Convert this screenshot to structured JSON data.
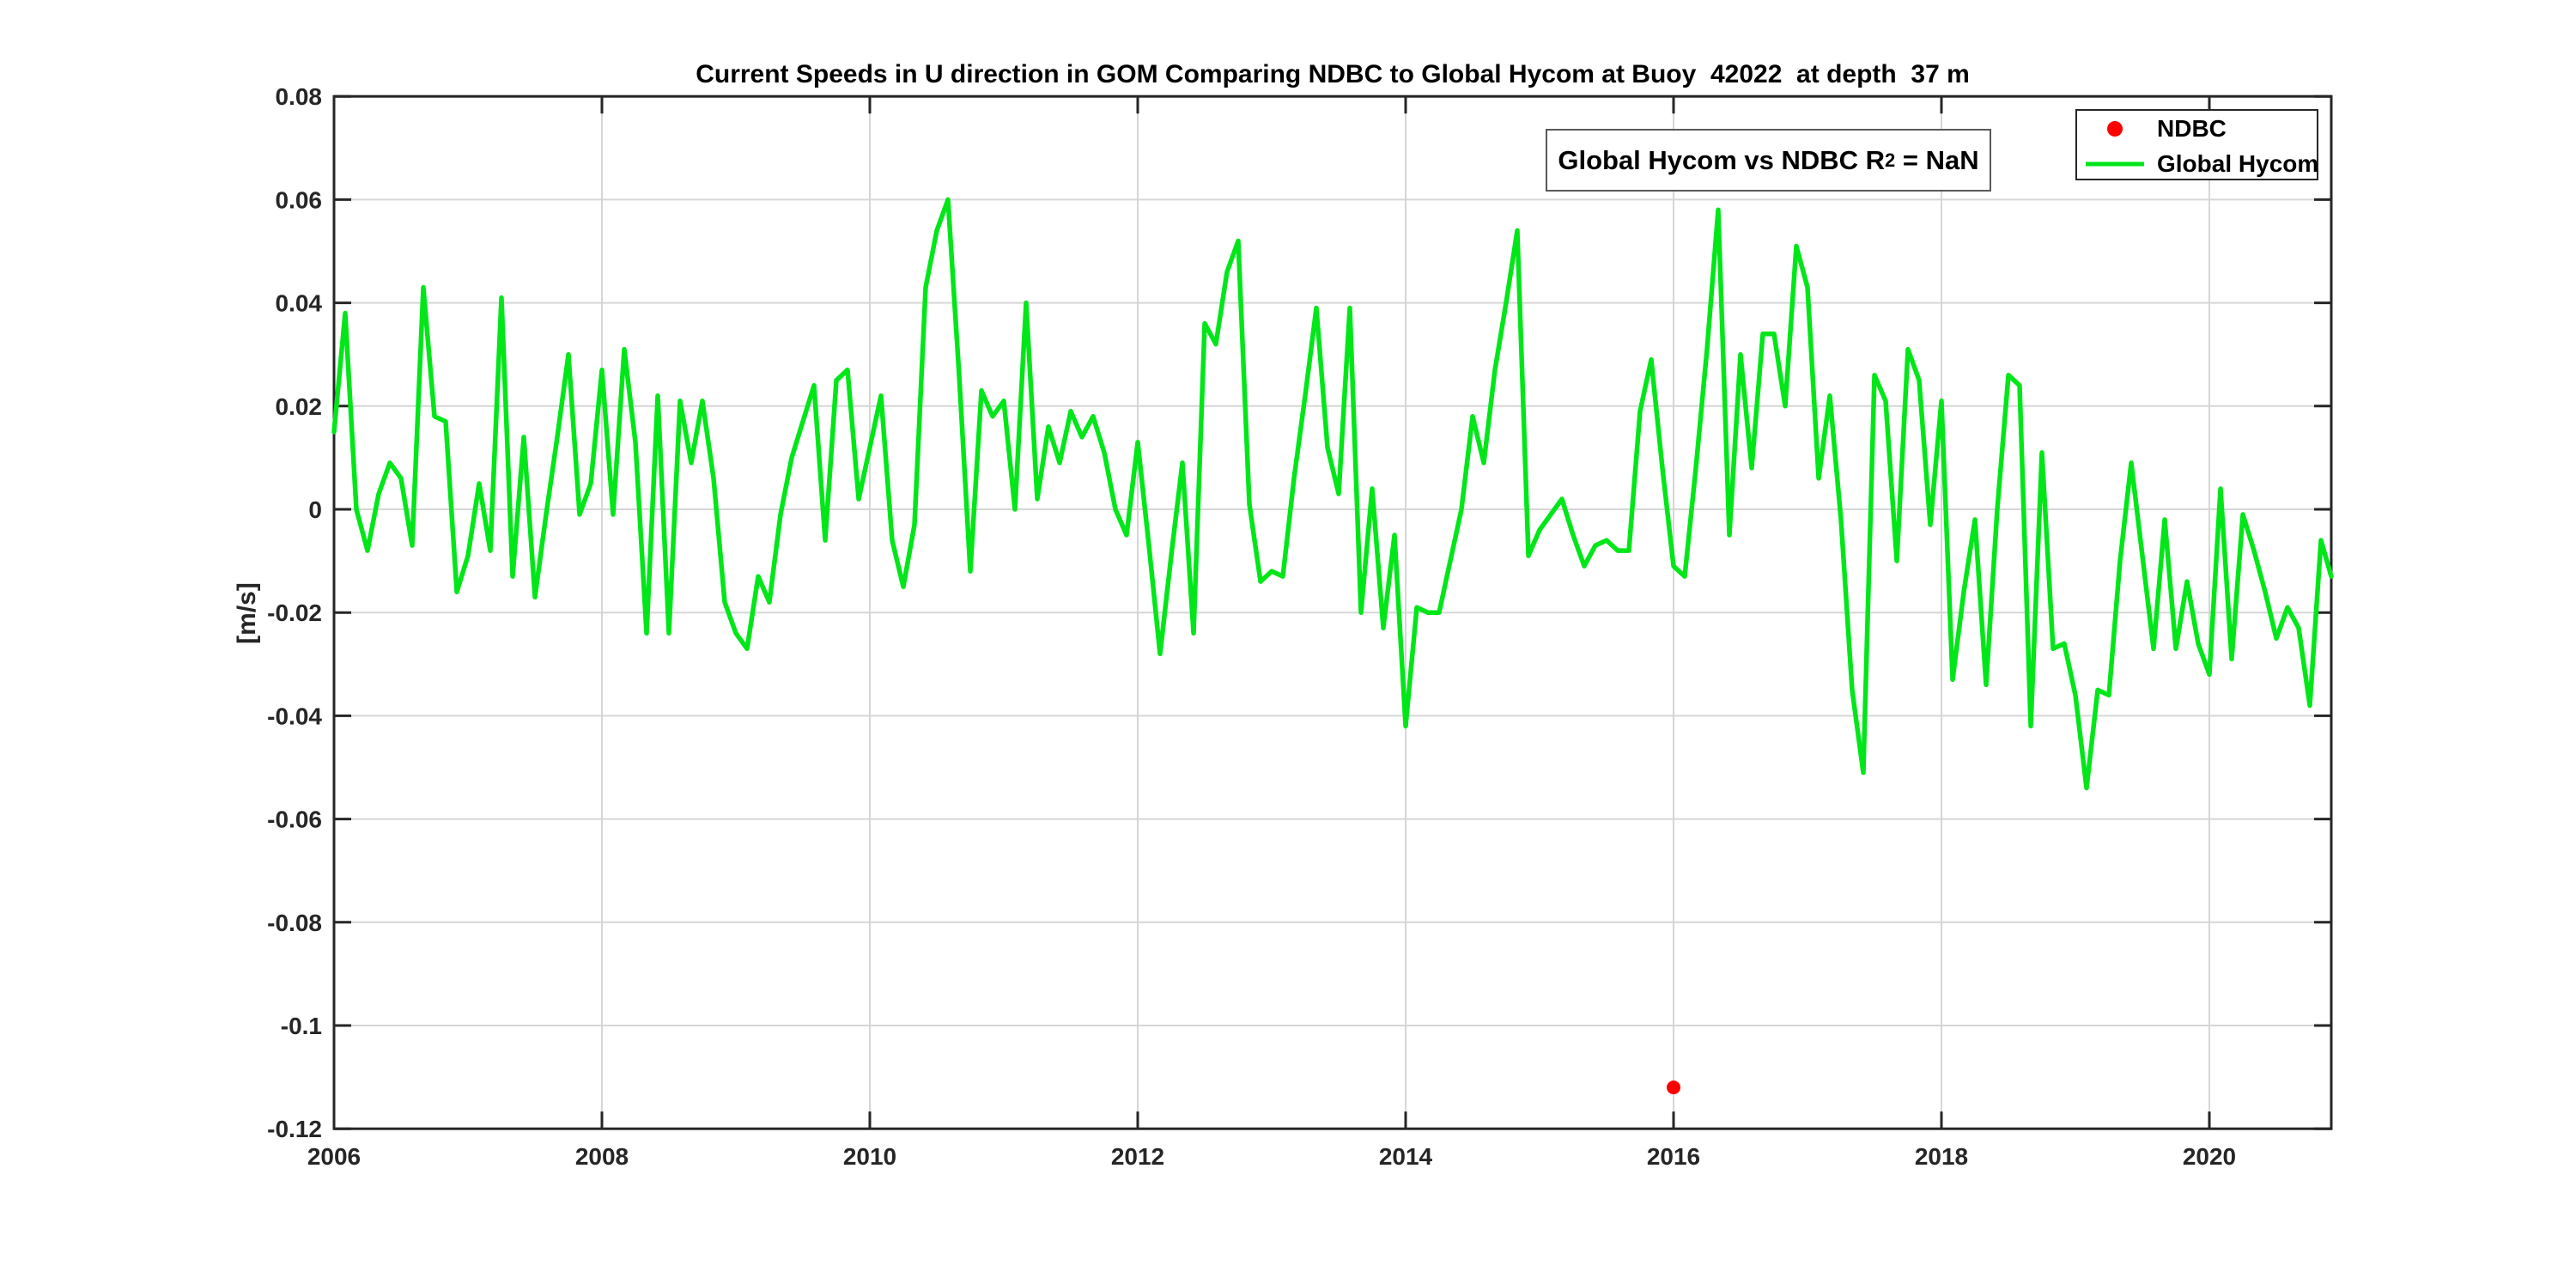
{
  "title": "Current Speeds in U direction in GOM Comparing NDBC to Global Hycom at Buoy  42022  at depth  37 m",
  "y_axis_label": "[m/s]",
  "annotation": {
    "text_main": "Global Hycom vs NDBC R",
    "superscript": "2",
    "text_tail": " = NaN"
  },
  "legend": {
    "items": [
      {
        "label": "NDBC",
        "marker": "red-dot"
      },
      {
        "label": "Global Hycom",
        "marker": "green-line"
      }
    ]
  },
  "colors": {
    "ndbc_red": "#ff0000",
    "hycom_green": "#00e619",
    "axis": "#262626",
    "grid": "#d6d6d6",
    "background": "#ffffff"
  },
  "chart_data": {
    "type": "line",
    "title": "Current Speeds in U direction in GOM Comparing NDBC to Global Hycom at Buoy  42022  at depth  37 m",
    "xlabel": "",
    "ylabel": "[m/s]",
    "xlim": [
      2006,
      2020.92
    ],
    "ylim": [
      -0.12,
      0.08
    ],
    "grid": true,
    "legend_position": "top-right",
    "xticks": [
      2006,
      2008,
      2010,
      2012,
      2014,
      2016,
      2018,
      2020
    ],
    "xtick_labels": [
      "2006",
      "2008",
      "2010",
      "2012",
      "2014",
      "2016",
      "2018",
      "2020"
    ],
    "yticks": [
      0.08,
      0.06,
      0.04,
      0.02,
      0,
      -0.02,
      -0.04,
      -0.06,
      -0.08,
      -0.1,
      -0.12
    ],
    "ytick_labels": [
      "0.08",
      "0.06",
      "0.04",
      "0.02",
      "0",
      "-0.02",
      "-0.04",
      "-0.06",
      "-0.08",
      "-0.1",
      "-0.12"
    ],
    "series": [
      {
        "name": "NDBC",
        "type": "scatter",
        "color": "#ff0000",
        "points": [
          {
            "x": 2016.0,
            "y": -0.112
          }
        ]
      },
      {
        "name": "Global Hycom",
        "type": "line",
        "color": "#00e619",
        "start_year": 2006,
        "step_months": 1,
        "values": [
          0.015,
          0.038,
          0.0,
          -0.008,
          0.003,
          0.009,
          0.006,
          -0.007,
          0.043,
          0.018,
          0.017,
          -0.016,
          -0.009,
          0.005,
          -0.008,
          0.041,
          -0.013,
          0.014,
          -0.017,
          -0.001,
          0.014,
          0.03,
          -0.001,
          0.005,
          0.027,
          -0.001,
          0.031,
          0.013,
          -0.024,
          0.022,
          -0.024,
          0.021,
          0.009,
          0.021,
          0.006,
          -0.018,
          -0.024,
          -0.027,
          -0.013,
          -0.018,
          -0.001,
          0.01,
          0.017,
          0.024,
          -0.006,
          0.025,
          0.027,
          0.002,
          0.012,
          0.022,
          -0.006,
          -0.015,
          -0.003,
          0.043,
          0.054,
          0.06,
          0.026,
          -0.012,
          0.023,
          0.018,
          0.021,
          0.0,
          0.04,
          0.002,
          0.016,
          0.009,
          0.019,
          0.014,
          0.018,
          0.011,
          0.0,
          -0.005,
          0.013,
          -0.007,
          -0.028,
          -0.009,
          0.009,
          -0.024,
          0.036,
          0.032,
          0.046,
          0.052,
          0.001,
          -0.014,
          -0.012,
          -0.013,
          0.006,
          0.022,
          0.039,
          0.012,
          0.003,
          0.039,
          -0.02,
          0.004,
          -0.023,
          -0.005,
          -0.042,
          -0.019,
          -0.02,
          -0.02,
          -0.01,
          0.0,
          0.018,
          0.009,
          0.027,
          0.04,
          0.054,
          -0.009,
          -0.004,
          -0.001,
          0.002,
          -0.005,
          -0.011,
          -0.007,
          -0.006,
          -0.008,
          -0.008,
          0.019,
          0.029,
          0.008,
          -0.011,
          -0.013,
          0.008,
          0.031,
          0.058,
          -0.005,
          0.03,
          0.008,
          0.034,
          0.034,
          0.02,
          0.051,
          0.043,
          0.006,
          0.022,
          -0.002,
          -0.035,
          -0.051,
          0.026,
          0.021,
          -0.01,
          0.031,
          0.025,
          -0.003,
          0.021,
          -0.033,
          -0.016,
          -0.002,
          -0.034,
          0.0,
          0.026,
          0.024,
          -0.042,
          0.011,
          -0.027,
          -0.026,
          -0.036,
          -0.054,
          -0.035,
          -0.036,
          -0.01,
          0.009,
          -0.009,
          -0.027,
          -0.002,
          -0.027,
          -0.014,
          -0.026,
          -0.032,
          0.004,
          -0.029,
          -0.001,
          -0.008,
          -0.016,
          -0.025,
          -0.019,
          -0.023,
          -0.038,
          -0.006,
          -0.013
        ]
      }
    ]
  }
}
